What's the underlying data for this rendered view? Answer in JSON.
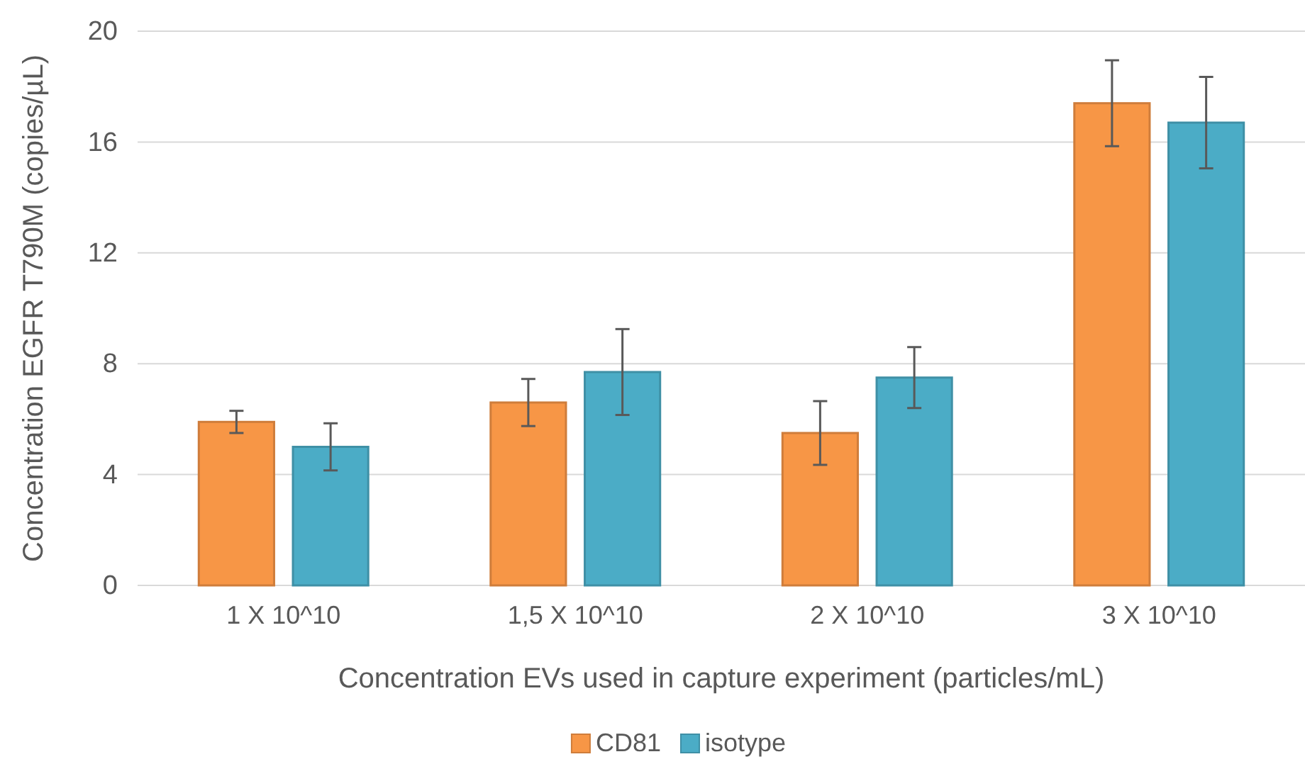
{
  "chart_data": {
    "type": "bar",
    "xlabel": "Concentration EVs used in capture experiment (particles/mL)",
    "ylabel": "Concentration EGFR T790M (copies/µL)",
    "categories": [
      "1 X 10^10",
      "1,5 X 10^10",
      "2 X 10^10",
      "3 X 10^10"
    ],
    "series": [
      {
        "name": "CD81",
        "color": "#f79646",
        "values": [
          5.9,
          6.6,
          5.5,
          17.4
        ],
        "errors": [
          0.4,
          0.85,
          1.15,
          1.55
        ]
      },
      {
        "name": "isotype",
        "color": "#4bacc6",
        "values": [
          5.0,
          7.7,
          7.5,
          16.7
        ],
        "errors": [
          0.85,
          1.55,
          1.1,
          1.65
        ]
      }
    ],
    "ylim": [
      0,
      20
    ],
    "yticks": [
      0,
      4,
      8,
      12,
      16,
      20
    ],
    "grid": "y",
    "legend": "bottom"
  }
}
